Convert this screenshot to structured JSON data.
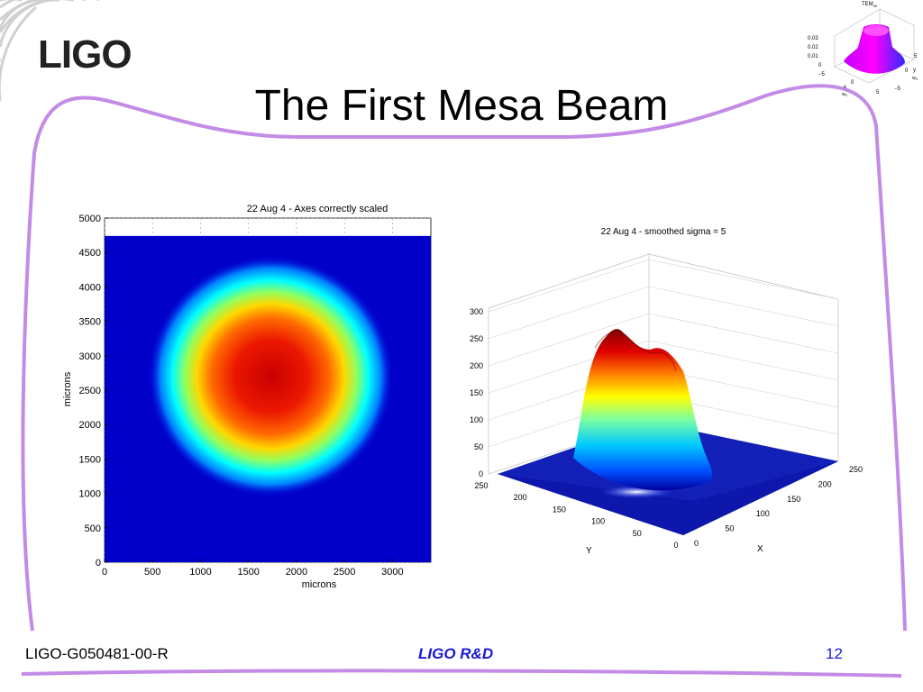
{
  "slide": {
    "logo_text": "LIGO",
    "title": "The First Mesa Beam",
    "footer_id": "LIGO-G050481-00-R",
    "footer_center": "LIGO R&D",
    "page_number": "12"
  },
  "inset_plot": {
    "title": "TEM",
    "title_sub": "00",
    "z_ticks": [
      "0.03",
      "0.02",
      "0.01",
      "0"
    ],
    "x_label": "x",
    "x_label_sub": "w",
    "y_label": "y",
    "y_label_sub": "w",
    "left_ticks": [
      "−5",
      "0"
    ],
    "right_ticks": [
      "5",
      "0",
      "−5"
    ],
    "bottom_ticks": [
      "5"
    ]
  },
  "chart_data": [
    {
      "type": "heatmap",
      "title": "22 Aug 4 - Axes correctly scaled",
      "xlabel": "microns",
      "ylabel": "microns",
      "x_ticks": [
        "0",
        "500",
        "1000",
        "1500",
        "2000",
        "2500",
        "3000"
      ],
      "y_ticks": [
        "0",
        "500",
        "1000",
        "1500",
        "2000",
        "2500",
        "3000",
        "3500",
        "4000",
        "4500",
        "5000"
      ],
      "xlim": [
        0,
        3400
      ],
      "ylim": [
        0,
        5000
      ],
      "data_extent": {
        "x": [
          0,
          3400
        ],
        "y": [
          0,
          4740
        ]
      },
      "beam_center": {
        "x": 1730,
        "y": 2700
      },
      "beam_radius_microns": {
        "x": 1280,
        "y": 1750
      },
      "colormap": "jet"
    },
    {
      "type": "surface",
      "title": "22 Aug 4 - smoothed sigma = 5",
      "xlabel": "X",
      "ylabel": "Y",
      "x_ticks": [
        "0",
        "50",
        "100",
        "150",
        "200",
        "250"
      ],
      "y_ticks": [
        "0",
        "50",
        "100",
        "150",
        "200",
        "250"
      ],
      "z_ticks": [
        "0",
        "50",
        "100",
        "150",
        "200",
        "250",
        "300"
      ],
      "xlim": [
        0,
        250
      ],
      "ylim": [
        0,
        250
      ],
      "zlim": [
        0,
        300
      ],
      "peak_value": 265,
      "colormap": "jet"
    }
  ]
}
